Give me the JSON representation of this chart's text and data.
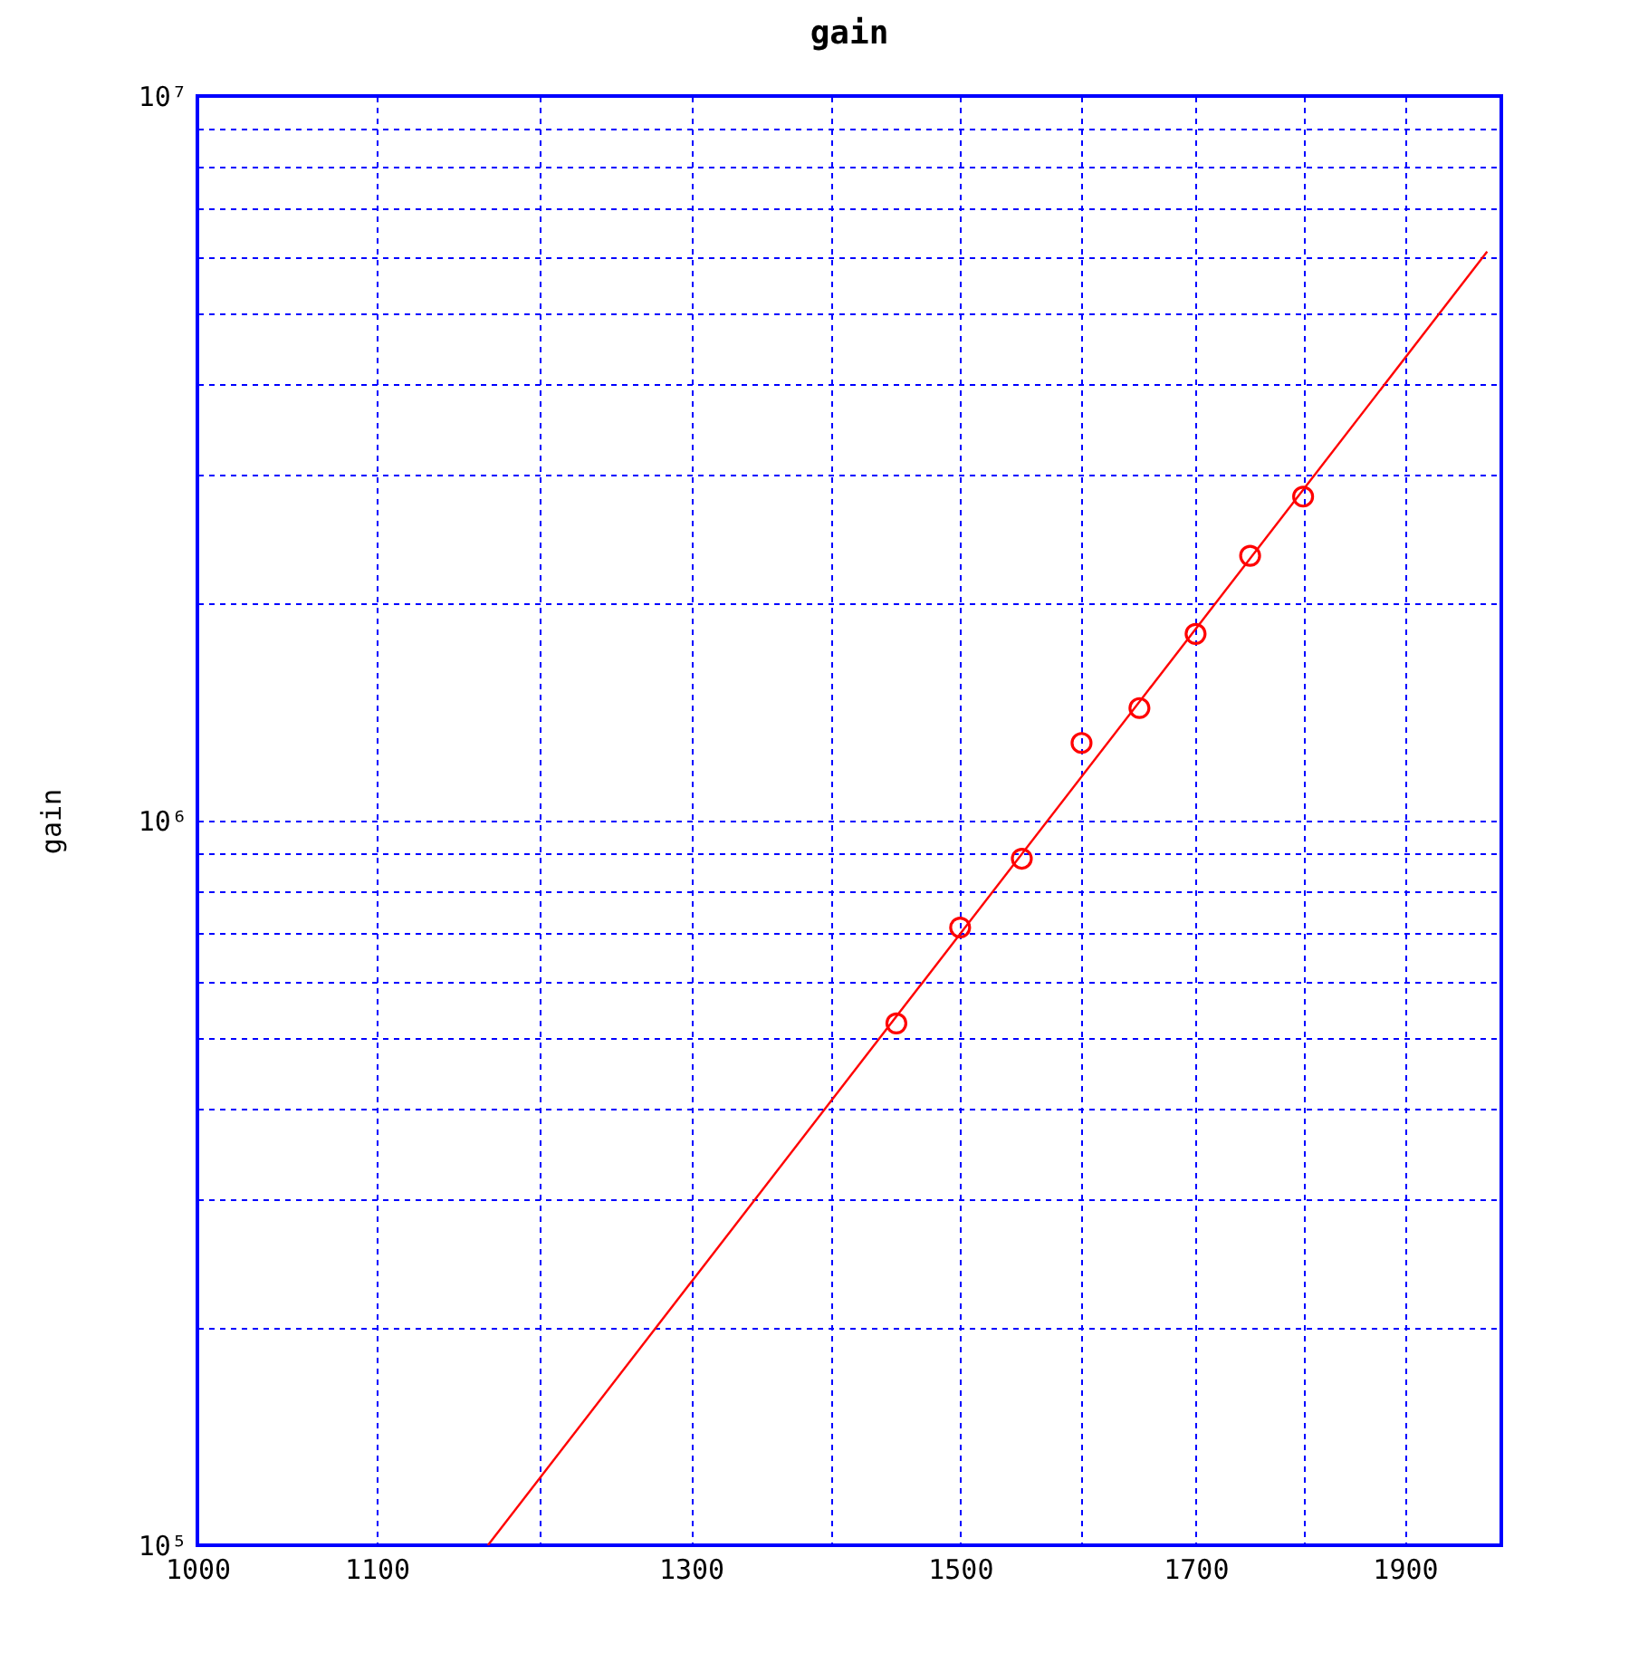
{
  "chart_data": {
    "type": "scatter",
    "title": "gain",
    "ylabel": "gain",
    "log": "xy",
    "grid": true,
    "marker": "circle",
    "xlim": [
      1000,
      2000
    ],
    "xticks": [
      1000,
      1100,
      {
        "value": 1200,
        "label": null
      },
      1300,
      {
        "value": 1400,
        "label": null
      },
      1500,
      {
        "value": 1600,
        "label": null
      },
      1700,
      {
        "value": 1800,
        "label": null
      },
      1900
    ],
    "ylim": [
      100000,
      10000000
    ],
    "yticks": [
      {
        "value": 100000,
        "label": "10⁵"
      },
      {
        "value": 200000,
        "label": null
      },
      {
        "value": 300000,
        "label": null
      },
      {
        "value": 400000,
        "label": null
      },
      {
        "value": 500000,
        "label": null
      },
      {
        "value": 600000,
        "label": null
      },
      {
        "value": 700000,
        "label": null
      },
      {
        "value": 800000,
        "label": null
      },
      {
        "value": 900000,
        "label": null
      },
      {
        "value": 1000000,
        "label": "10⁶"
      },
      {
        "value": 2000000,
        "label": null
      },
      {
        "value": 3000000,
        "label": null
      },
      {
        "value": 4000000,
        "label": null
      },
      {
        "value": 5000000,
        "label": null
      },
      {
        "value": 6000000,
        "label": null
      },
      {
        "value": 7000000,
        "label": null
      },
      {
        "value": 8000000,
        "label": null
      },
      {
        "value": 9000000,
        "label": null
      },
      {
        "value": 10000000,
        "label": "10⁷"
      }
    ],
    "series": [
      {
        "color": "#ff0000",
        "x": [
          1450,
          1500,
          1550,
          1600,
          1650,
          1700,
          1750,
          1800
        ],
        "values": [
          525000,
          712000,
          886000,
          1280000,
          1430000,
          1810000,
          2320000,
          2800000
        ]
      },
      {
        "type": "line",
        "marker": "none",
        "color": "#ff0000",
        "x": [
          1167,
          1985
        ],
        "values": [
          100000,
          6100000
        ]
      }
    ]
  }
}
